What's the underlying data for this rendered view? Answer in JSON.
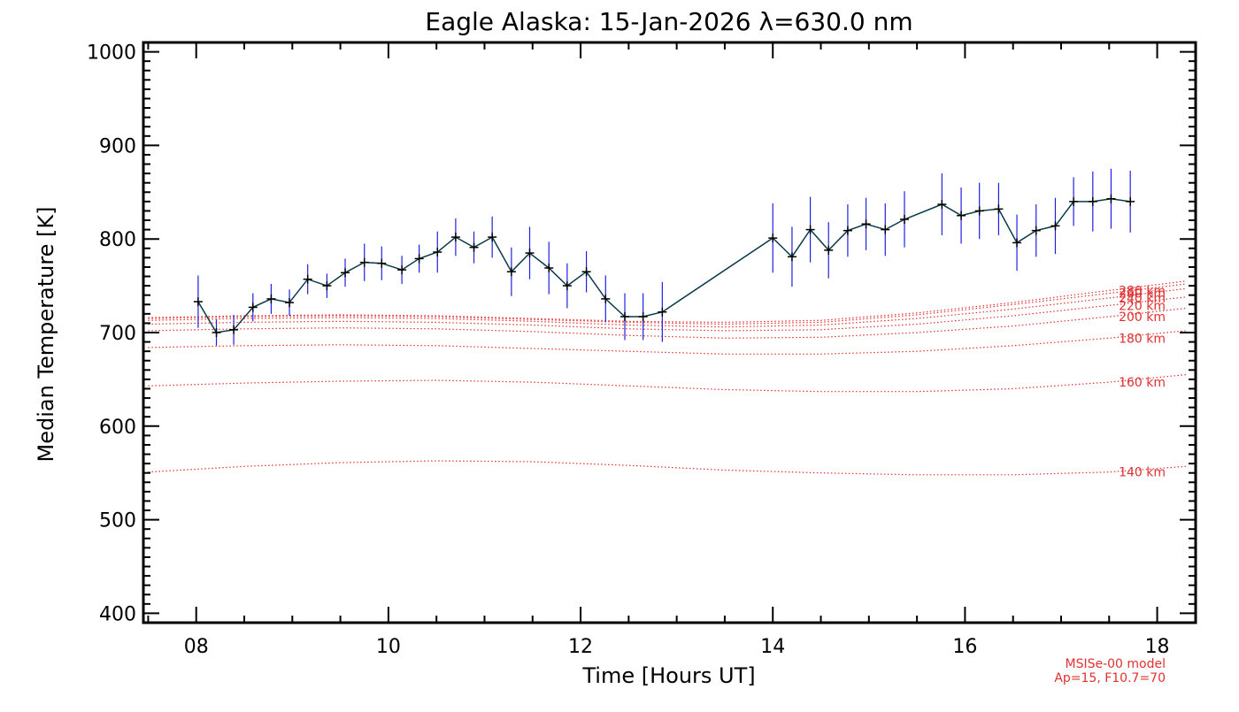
{
  "chart_data": {
    "type": "line",
    "title": "Eagle Alaska: 15-Jan-2026 λ=630.0 nm",
    "xlabel": "Time [Hours UT]",
    "ylabel": "Median Temperature [K]",
    "xlim": [
      7.45,
      18.4
    ],
    "ylim": [
      390,
      1010
    ],
    "xticks": [
      8,
      10,
      12,
      14,
      16,
      18
    ],
    "xtick_labels": [
      "08",
      "10",
      "12",
      "14",
      "16",
      "18"
    ],
    "yticks": [
      400,
      500,
      600,
      700,
      800,
      900,
      1000
    ],
    "ytick_labels": [
      "400",
      "500",
      "600",
      "700",
      "800",
      "900",
      "1000"
    ],
    "grid": false,
    "measured": {
      "name": "Median Temperature",
      "color": "#0a3a4a",
      "errorbar_color": "#2020e0",
      "x": [
        8.02,
        8.21,
        8.39,
        8.59,
        8.78,
        8.97,
        9.16,
        9.36,
        9.55,
        9.75,
        9.93,
        10.14,
        10.32,
        10.51,
        10.7,
        10.89,
        11.08,
        11.28,
        11.47,
        11.67,
        11.86,
        12.06,
        12.26,
        12.46,
        12.65,
        12.85,
        14.0,
        14.2,
        14.39,
        14.58,
        14.78,
        14.97,
        15.17,
        15.37,
        15.76,
        15.96,
        16.15,
        16.35,
        16.54,
        16.74,
        16.94,
        17.13,
        17.33,
        17.52,
        17.72
      ],
      "y": [
        733,
        700,
        703,
        727,
        736,
        732,
        757,
        750,
        764,
        775,
        774,
        767,
        779,
        786,
        802,
        791,
        802,
        765,
        785,
        769,
        750,
        765,
        736,
        717,
        717,
        722,
        801,
        781,
        810,
        788,
        809,
        816,
        810,
        821,
        837,
        825,
        830,
        832,
        796,
        809,
        814,
        840,
        840,
        843,
        840
      ],
      "err": [
        28,
        14,
        16,
        15,
        16,
        14,
        16,
        13,
        15,
        20,
        18,
        15,
        15,
        22,
        20,
        17,
        22,
        26,
        28,
        28,
        24,
        22,
        25,
        25,
        25,
        32,
        37,
        32,
        35,
        30,
        28,
        28,
        28,
        30,
        33,
        30,
        30,
        28,
        30,
        28,
        30,
        26,
        32,
        32,
        33
      ]
    },
    "model": {
      "name": "MSISe-00 model",
      "params": "Ap=15, F10.7=70",
      "color": "#e03030",
      "x": [
        7.5,
        8.5,
        9.5,
        10.5,
        11.5,
        12.5,
        13.5,
        14.5,
        15.5,
        16.5,
        17.5,
        18.3
      ],
      "series": [
        {
          "name": "140 km",
          "values": [
            551,
            557,
            561,
            563,
            562,
            558,
            553,
            550,
            548,
            548,
            551,
            557
          ]
        },
        {
          "name": "160 km",
          "values": [
            643,
            646,
            648,
            649,
            647,
            643,
            639,
            637,
            637,
            640,
            647,
            655
          ]
        },
        {
          "name": "180 km",
          "values": [
            684,
            686,
            687,
            686,
            683,
            680,
            677,
            677,
            680,
            686,
            694,
            702
          ]
        },
        {
          "name": "200 km",
          "values": [
            702,
            704,
            705,
            704,
            701,
            697,
            694,
            695,
            700,
            707,
            717,
            726
          ]
        },
        {
          "name": "220 km",
          "values": [
            709,
            711,
            712,
            711,
            708,
            704,
            702,
            703,
            709,
            718,
            729,
            738
          ]
        },
        {
          "name": "240 km",
          "values": [
            713,
            715,
            716,
            715,
            712,
            708,
            706,
            708,
            715,
            725,
            737,
            747
          ]
        },
        {
          "name": "260 km",
          "values": [
            715,
            717,
            718,
            717,
            714,
            711,
            709,
            711,
            719,
            730,
            742,
            752
          ]
        },
        {
          "name": "280 km",
          "values": [
            716,
            718,
            719,
            718,
            715,
            712,
            711,
            713,
            721,
            732,
            745,
            755
          ]
        }
      ]
    }
  }
}
